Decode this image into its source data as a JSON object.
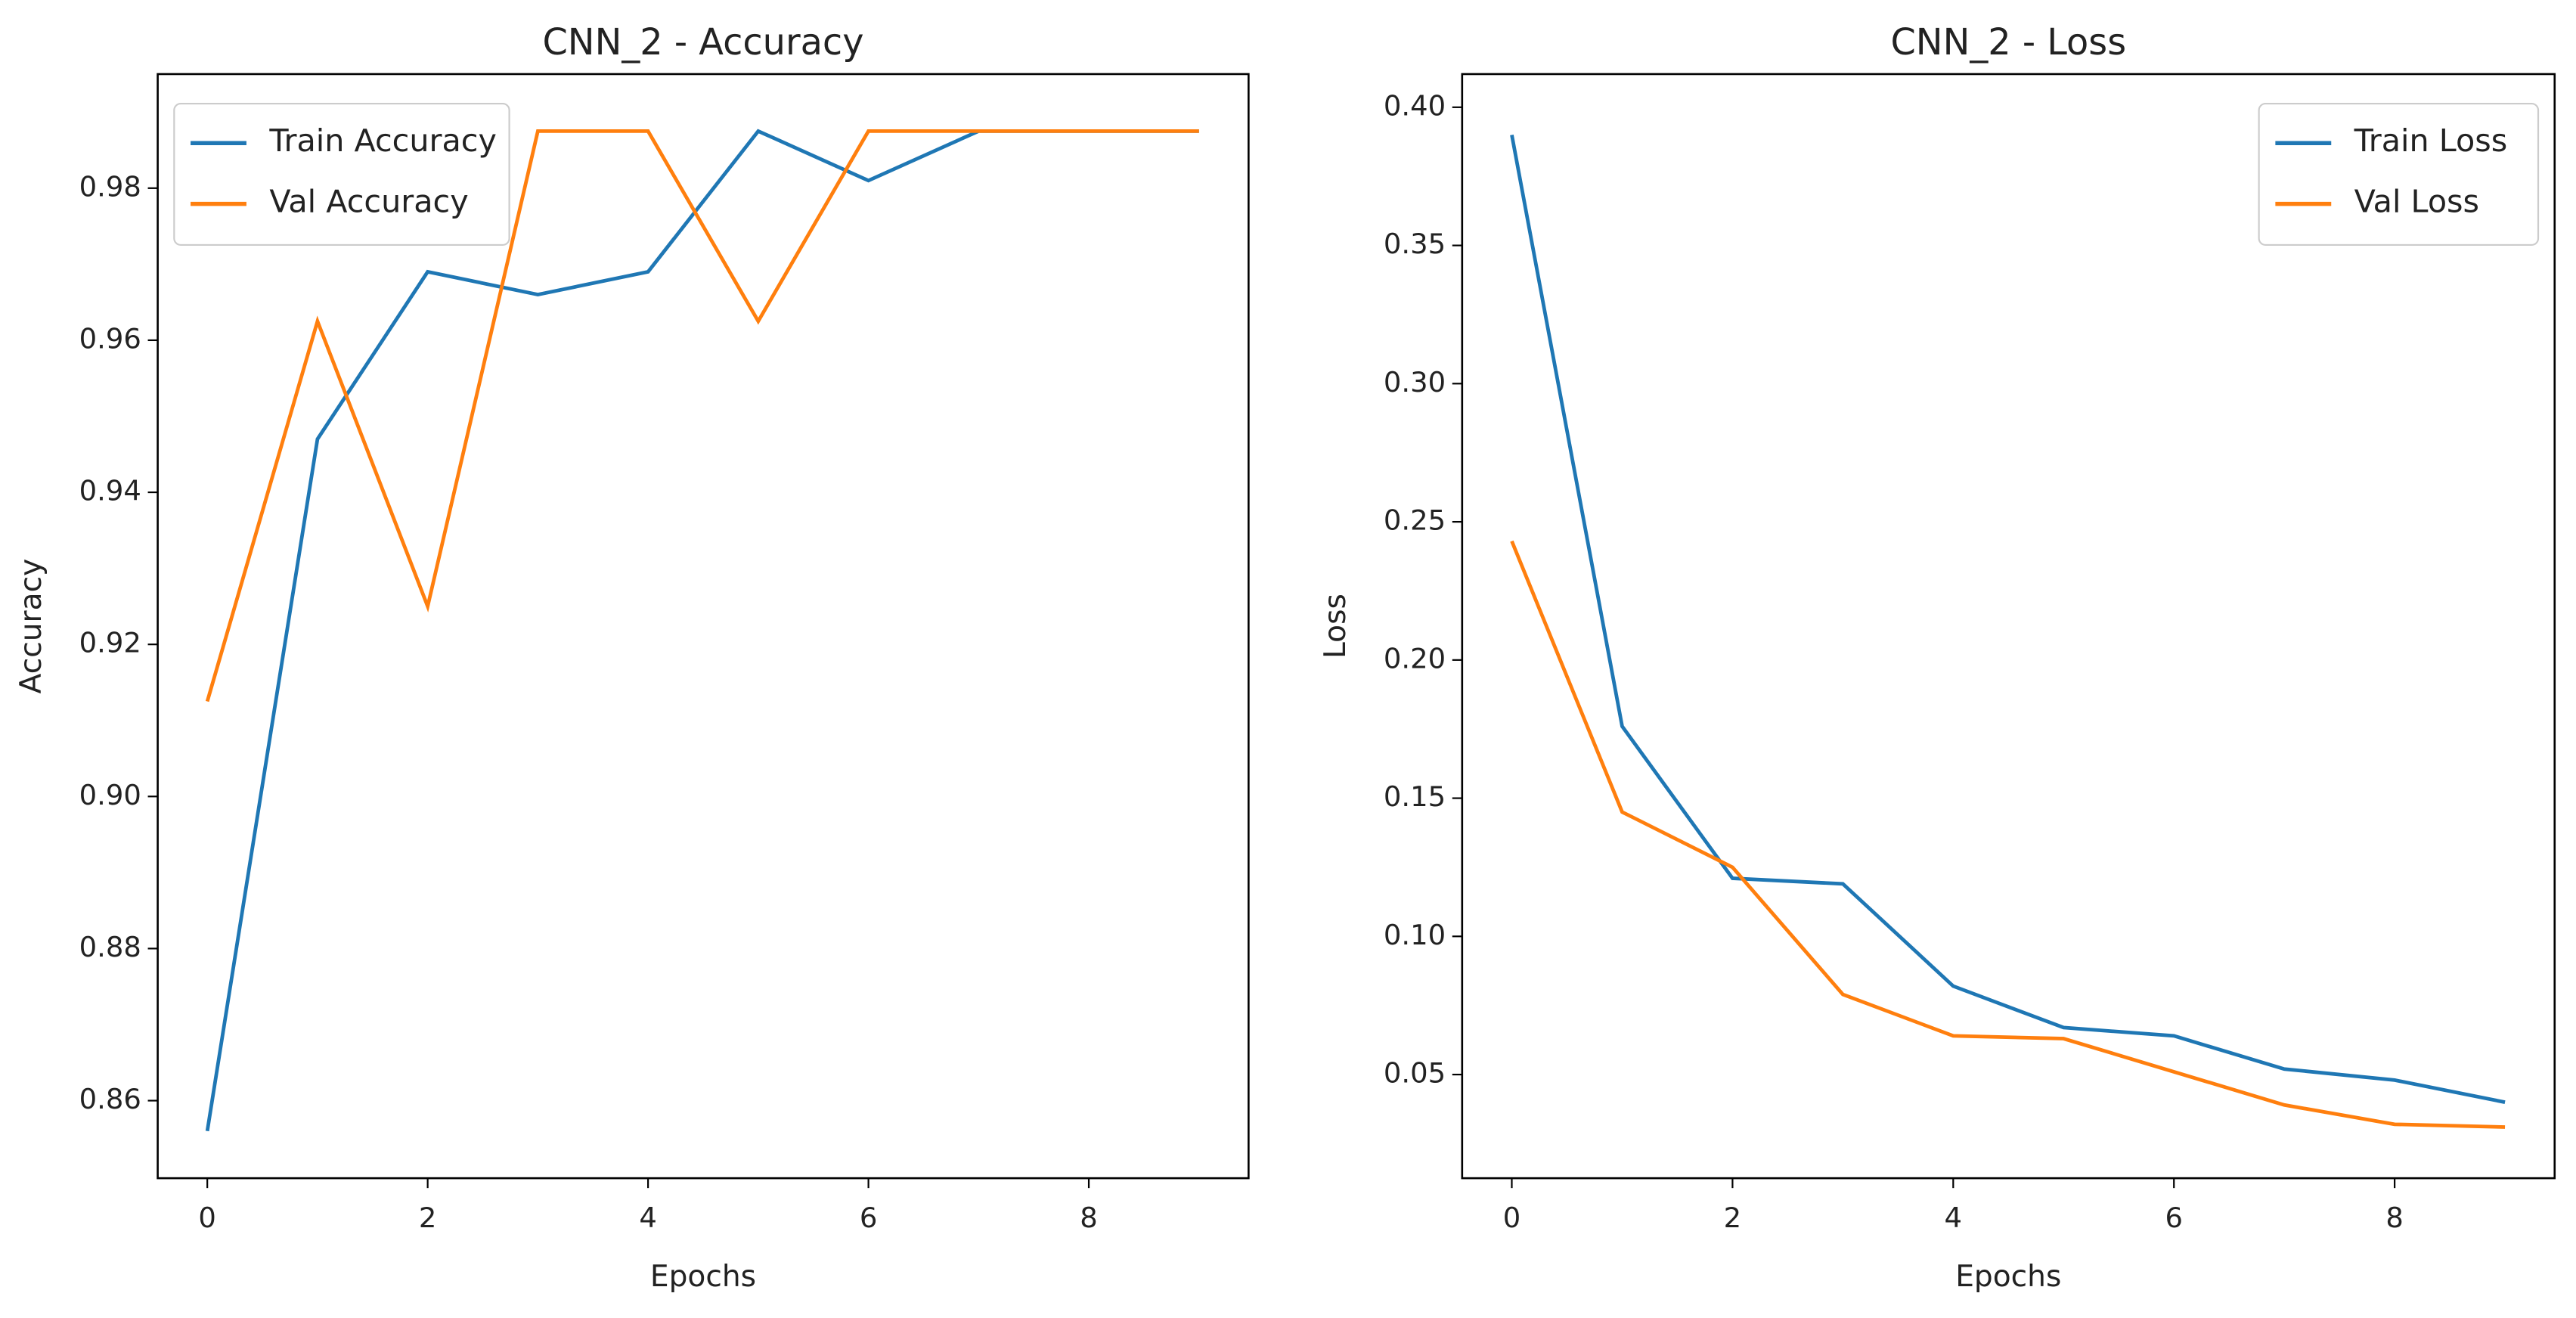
{
  "chart_data": [
    {
      "type": "line",
      "title": "CNN_2 - Accuracy",
      "xlabel": "Epochs",
      "ylabel": "Accuracy",
      "x": [
        0,
        1,
        2,
        3,
        4,
        5,
        6,
        7,
        8,
        9
      ],
      "series": [
        {
          "name": "Train Accuracy",
          "color": "#1f77b4",
          "values": [
            0.856,
            0.947,
            0.969,
            0.966,
            0.969,
            0.9875,
            0.981,
            0.9875,
            0.9875,
            0.9875
          ]
        },
        {
          "name": "Val Accuracy",
          "color": "#ff7f0e",
          "values": [
            0.9125,
            0.9625,
            0.925,
            0.9875,
            0.9875,
            0.9625,
            0.9875,
            0.9875,
            0.9875,
            0.9875
          ]
        }
      ],
      "xlim": [
        -0.45,
        9.45
      ],
      "xticks": [
        0,
        2,
        4,
        6,
        8
      ],
      "ylim": [
        0.8498,
        0.995
      ],
      "yticks": [
        0.86,
        0.88,
        {
          "value": 0.9,
          "label": "0.90"
        },
        0.92,
        0.94,
        0.96,
        0.98
      ],
      "legend": "upper left"
    },
    {
      "type": "line",
      "title": "CNN_2 - Loss",
      "xlabel": "Epochs",
      "ylabel": "Loss",
      "x": [
        0,
        1,
        2,
        3,
        4,
        5,
        6,
        7,
        8,
        9
      ],
      "series": [
        {
          "name": "Train Loss",
          "color": "#1f77b4",
          "values": [
            0.39,
            0.176,
            0.121,
            0.119,
            0.082,
            0.067,
            0.064,
            0.052,
            0.048,
            0.04
          ]
        },
        {
          "name": "Val Loss",
          "color": "#ff7f0e",
          "values": [
            0.243,
            0.145,
            0.125,
            0.079,
            0.064,
            0.063,
            0.051,
            0.039,
            0.032,
            0.031
          ]
        }
      ],
      "xlim": [
        -0.45,
        9.45
      ],
      "xticks": [
        0,
        2,
        4,
        6,
        8
      ],
      "ylim": [
        0.0125,
        0.412
      ],
      "yticks": [
        0.05,
        {
          "value": 0.1,
          "label": "0.10"
        },
        0.15,
        {
          "value": 0.2,
          "label": "0.20"
        },
        0.25,
        {
          "value": 0.3,
          "label": "0.30"
        },
        0.35,
        {
          "value": 0.4,
          "label": "0.40"
        }
      ],
      "legend": "upper right"
    }
  ]
}
